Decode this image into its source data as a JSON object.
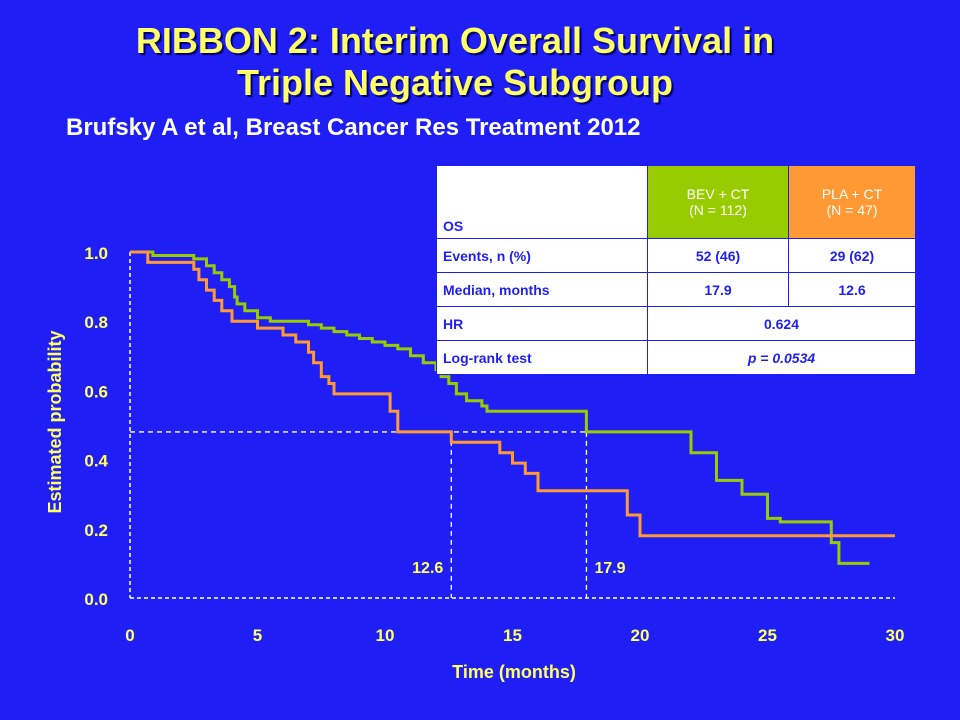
{
  "slide": {
    "title_line1": "RIBBON 2: Interim Overall Survival in",
    "title_line2": "Triple Negative Subgroup",
    "subtitle": "Brufsky A et al, Breast Cancer Res Treatment 2012"
  },
  "table": {
    "header": {
      "os": "OS",
      "bev_name": "BEV + CT",
      "bev_n": "(N = 112)",
      "pla_name": "PLA + CT",
      "pla_n": "(N = 47)"
    },
    "rows": [
      {
        "label": "Events, n (%)",
        "bev": "52 (46)",
        "pla": "29 (62)"
      },
      {
        "label": "Median, months",
        "bev": "17.9",
        "pla": "12.6"
      },
      {
        "label": "HR",
        "value": "0.624"
      },
      {
        "label": "Log-rank test",
        "value": "p = 0.0534"
      }
    ],
    "colors": {
      "bev": "#99CC00",
      "pla": "#FF9933"
    }
  },
  "chart_data": {
    "type": "line",
    "xlabel": "Time (months)",
    "ylabel": "Estimated probability",
    "xlim": [
      0,
      30
    ],
    "ylim": [
      0,
      1
    ],
    "x_ticks": [
      "0",
      "5",
      "10",
      "15",
      "20",
      "25",
      "30"
    ],
    "y_ticks": [
      "0.0",
      "0.2",
      "0.4",
      "0.6",
      "0.8",
      "1.0"
    ],
    "median_line_y": 0.48,
    "medians": [
      {
        "x": 12.6,
        "label": "12.6"
      },
      {
        "x": 17.9,
        "label": "17.9"
      }
    ],
    "series": [
      {
        "key": "bev",
        "color": "#99CC00",
        "points": [
          [
            0,
            1.0
          ],
          [
            0.9,
            1.0
          ],
          [
            0.9,
            0.99
          ],
          [
            2.5,
            0.99
          ],
          [
            2.5,
            0.98
          ],
          [
            3.0,
            0.98
          ],
          [
            3.0,
            0.96
          ],
          [
            3.3,
            0.96
          ],
          [
            3.3,
            0.94
          ],
          [
            3.6,
            0.94
          ],
          [
            3.6,
            0.92
          ],
          [
            3.9,
            0.92
          ],
          [
            3.9,
            0.9
          ],
          [
            4.1,
            0.9
          ],
          [
            4.1,
            0.87
          ],
          [
            4.2,
            0.87
          ],
          [
            4.2,
            0.85
          ],
          [
            4.5,
            0.85
          ],
          [
            4.5,
            0.83
          ],
          [
            5.0,
            0.83
          ],
          [
            5.0,
            0.81
          ],
          [
            5.5,
            0.81
          ],
          [
            5.5,
            0.8
          ],
          [
            7.0,
            0.8
          ],
          [
            7.0,
            0.79
          ],
          [
            7.5,
            0.79
          ],
          [
            7.5,
            0.78
          ],
          [
            8.0,
            0.78
          ],
          [
            8.0,
            0.77
          ],
          [
            8.5,
            0.77
          ],
          [
            8.5,
            0.76
          ],
          [
            9.0,
            0.76
          ],
          [
            9.0,
            0.75
          ],
          [
            9.5,
            0.75
          ],
          [
            9.5,
            0.74
          ],
          [
            10.0,
            0.74
          ],
          [
            10.0,
            0.73
          ],
          [
            10.5,
            0.73
          ],
          [
            10.5,
            0.72
          ],
          [
            11.0,
            0.72
          ],
          [
            11.0,
            0.7
          ],
          [
            11.5,
            0.7
          ],
          [
            11.5,
            0.68
          ],
          [
            12.0,
            0.68
          ],
          [
            12.0,
            0.66
          ],
          [
            12.2,
            0.66
          ],
          [
            12.2,
            0.64
          ],
          [
            12.5,
            0.64
          ],
          [
            12.5,
            0.62
          ],
          [
            12.8,
            0.62
          ],
          [
            12.8,
            0.59
          ],
          [
            13.2,
            0.59
          ],
          [
            13.2,
            0.57
          ],
          [
            13.8,
            0.57
          ],
          [
            13.8,
            0.555
          ],
          [
            14.0,
            0.555
          ],
          [
            14.0,
            0.54
          ],
          [
            17.9,
            0.54
          ],
          [
            17.9,
            0.48
          ],
          [
            22.0,
            0.48
          ],
          [
            22.0,
            0.42
          ],
          [
            23.0,
            0.42
          ],
          [
            23.0,
            0.34
          ],
          [
            24.0,
            0.34
          ],
          [
            24.0,
            0.3
          ],
          [
            25.0,
            0.3
          ],
          [
            25.0,
            0.23
          ],
          [
            25.5,
            0.23
          ],
          [
            25.5,
            0.22
          ],
          [
            27.5,
            0.22
          ],
          [
            27.5,
            0.16
          ],
          [
            27.8,
            0.16
          ],
          [
            27.8,
            0.1
          ],
          [
            29.0,
            0.1
          ]
        ]
      },
      {
        "key": "pla",
        "color": "#FF9933",
        "points": [
          [
            0,
            1.0
          ],
          [
            0.7,
            1.0
          ],
          [
            0.7,
            0.97
          ],
          [
            2.5,
            0.97
          ],
          [
            2.5,
            0.95
          ],
          [
            2.7,
            0.95
          ],
          [
            2.7,
            0.92
          ],
          [
            3.0,
            0.92
          ],
          [
            3.0,
            0.89
          ],
          [
            3.3,
            0.89
          ],
          [
            3.3,
            0.86
          ],
          [
            3.6,
            0.86
          ],
          [
            3.6,
            0.83
          ],
          [
            4.0,
            0.83
          ],
          [
            4.0,
            0.8
          ],
          [
            5.0,
            0.8
          ],
          [
            5.0,
            0.78
          ],
          [
            6.0,
            0.78
          ],
          [
            6.0,
            0.76
          ],
          [
            6.5,
            0.76
          ],
          [
            6.5,
            0.74
          ],
          [
            7.0,
            0.74
          ],
          [
            7.0,
            0.71
          ],
          [
            7.2,
            0.71
          ],
          [
            7.2,
            0.68
          ],
          [
            7.5,
            0.68
          ],
          [
            7.5,
            0.64
          ],
          [
            7.8,
            0.64
          ],
          [
            7.8,
            0.62
          ],
          [
            8.0,
            0.62
          ],
          [
            8.0,
            0.59
          ],
          [
            10.2,
            0.59
          ],
          [
            10.2,
            0.54
          ],
          [
            10.5,
            0.54
          ],
          [
            10.5,
            0.48
          ],
          [
            12.6,
            0.48
          ],
          [
            12.6,
            0.45
          ],
          [
            14.5,
            0.45
          ],
          [
            14.5,
            0.42
          ],
          [
            15.0,
            0.42
          ],
          [
            15.0,
            0.39
          ],
          [
            15.5,
            0.39
          ],
          [
            15.5,
            0.36
          ],
          [
            16.0,
            0.36
          ],
          [
            16.0,
            0.31
          ],
          [
            19.5,
            0.31
          ],
          [
            19.5,
            0.24
          ],
          [
            20.0,
            0.24
          ],
          [
            20.0,
            0.18
          ],
          [
            30.0,
            0.18
          ]
        ]
      }
    ]
  }
}
